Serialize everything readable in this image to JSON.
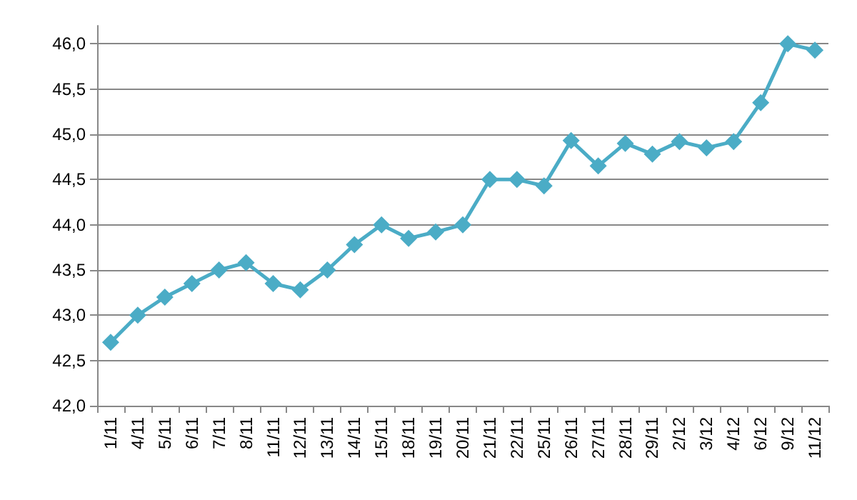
{
  "chart_data": {
    "type": "line",
    "categories": [
      "1/11",
      "4/11",
      "5/11",
      "6/11",
      "7/11",
      "8/11",
      "11/11",
      "12/11",
      "13/11",
      "14/11",
      "15/11",
      "18/11",
      "19/11",
      "20/11",
      "21/11",
      "22/11",
      "25/11",
      "26/11",
      "27/11",
      "28/11",
      "29/11",
      "2/12",
      "3/12",
      "4/12",
      "6/12",
      "9/12",
      "11/12"
    ],
    "series": [
      {
        "color": "#4bacc6",
        "values": [
          42.7,
          43.0,
          43.2,
          43.35,
          43.5,
          43.58,
          43.35,
          43.28,
          43.5,
          43.78,
          44.0,
          43.85,
          43.92,
          44.0,
          44.5,
          44.5,
          44.43,
          44.93,
          44.65,
          44.9,
          44.78,
          44.92,
          44.85,
          44.92,
          45.35,
          46.0,
          45.93
        ]
      }
    ],
    "ylim": [
      42,
      46.2
    ],
    "yticks": [
      {
        "value": 42,
        "label": "42,0"
      },
      {
        "value": 42.5,
        "label": "42,5"
      },
      {
        "value": 43,
        "label": "43,0"
      },
      {
        "value": 43.5,
        "label": "43,5"
      },
      {
        "value": 44,
        "label": "44,0"
      },
      {
        "value": 44.5,
        "label": "44,5"
      },
      {
        "value": 45,
        "label": "45,0"
      },
      {
        "value": 45.5,
        "label": "45,5"
      },
      {
        "value": 46,
        "label": "46,0"
      }
    ],
    "grid": "y",
    "marker": "diamond",
    "line_style": "solid"
  }
}
